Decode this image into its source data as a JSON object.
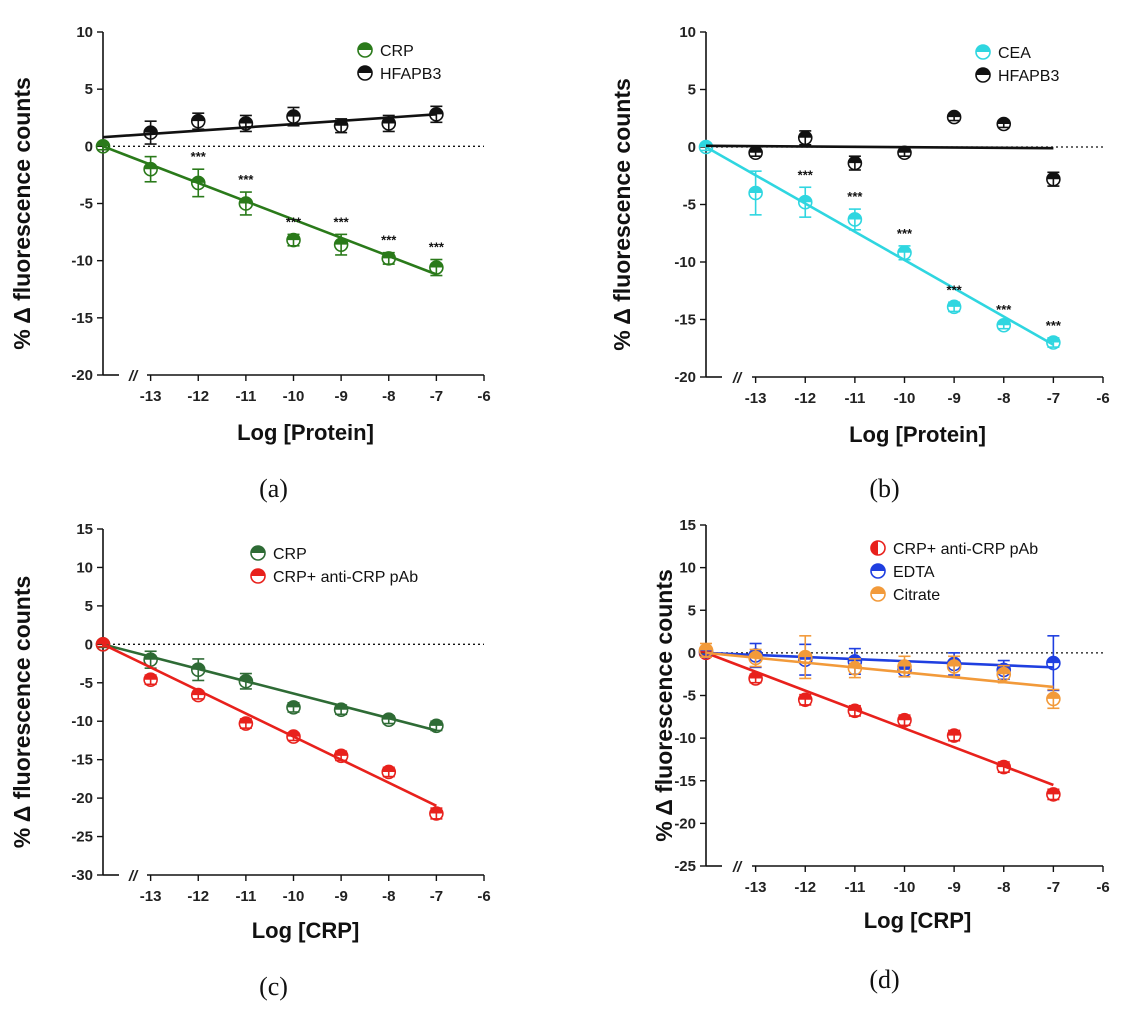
{
  "figure": {
    "panels": [
      "(a)",
      "(b)",
      "(c)",
      "(d)"
    ]
  },
  "chart_data": [
    {
      "type": "scatter",
      "panel_label": "(a)",
      "xlabel": "Log [Protein]",
      "ylabel": "% Δ fluorescence counts",
      "xlim": [
        -14,
        -6
      ],
      "ylim": [
        -20,
        10
      ],
      "xticks": [
        "-13",
        "-12",
        "-11",
        "-10",
        "-9",
        "-8",
        "-7",
        "-6"
      ],
      "yticks": [
        "10",
        "5",
        "0",
        "-5",
        "-10",
        "-15",
        "-20"
      ],
      "axis_break": "//",
      "legend_position": "top-right",
      "series": [
        {
          "name": "CRP",
          "color": "#2a7a1a",
          "x": [
            -14,
            -13,
            -12,
            -11,
            -10,
            -9,
            -8,
            -7
          ],
          "y": [
            0,
            -2,
            -3.2,
            -5,
            -8.2,
            -8.6,
            -9.8,
            -10.6
          ],
          "err": [
            0.3,
            1.1,
            1.2,
            1.0,
            0.5,
            0.9,
            0.5,
            0.7
          ],
          "fit": {
            "x": [
              -14,
              -7
            ],
            "y": [
              0,
              -11.2
            ]
          },
          "significance": [
            "",
            "",
            "***",
            "***",
            "***",
            "***",
            "***",
            "***"
          ]
        },
        {
          "name": "HFAPB3",
          "color": "#111111",
          "x": [
            -13,
            -12,
            -11,
            -10,
            -9,
            -8,
            -7
          ],
          "y": [
            1.2,
            2.2,
            2.0,
            2.6,
            1.8,
            2.0,
            2.8
          ],
          "err": [
            1.0,
            0.7,
            0.7,
            0.8,
            0.6,
            0.7,
            0.7
          ],
          "fit": {
            "x": [
              -14,
              -7
            ],
            "y": [
              0.8,
              2.8
            ]
          },
          "significance": []
        }
      ]
    },
    {
      "type": "scatter",
      "panel_label": "(b)",
      "xlabel": "Log [Protein]",
      "ylabel": "% Δ fluorescence counts",
      "xlim": [
        -14,
        -6
      ],
      "ylim": [
        -20,
        10
      ],
      "xticks": [
        "-13",
        "-12",
        "-11",
        "-10",
        "-9",
        "-8",
        "-7",
        "-6"
      ],
      "yticks": [
        "10",
        "5",
        "0",
        "-5",
        "-10",
        "-15",
        "-20"
      ],
      "axis_break": "//",
      "legend_position": "top-right",
      "series": [
        {
          "name": "CEA",
          "color": "#2fd6e0",
          "x": [
            -14,
            -13,
            -12,
            -11,
            -10,
            -9,
            -8,
            -7
          ],
          "y": [
            0,
            -4,
            -4.8,
            -6.3,
            -9.2,
            -13.9,
            -15.5,
            -17.0
          ],
          "err": [
            0.3,
            1.9,
            1.3,
            0.9,
            0.6,
            0.4,
            0.3,
            0.4
          ],
          "fit": {
            "x": [
              -14,
              -7
            ],
            "y": [
              0,
              -17.2
            ]
          },
          "significance": [
            "",
            "",
            "***",
            "***",
            "***",
            "***",
            "***",
            "***"
          ]
        },
        {
          "name": "HFAPB3",
          "color": "#111111",
          "x": [
            -13,
            -12,
            -11,
            -10,
            -9,
            -8,
            -7
          ],
          "y": [
            -0.5,
            0.8,
            -1.4,
            -0.5,
            2.6,
            2.0,
            -2.8
          ],
          "err": [
            0.3,
            0.6,
            0.6,
            0.3,
            0.3,
            0.3,
            0.6
          ],
          "fit": {
            "x": [
              -14,
              -7
            ],
            "y": [
              0.1,
              -0.1
            ]
          },
          "significance": []
        }
      ]
    },
    {
      "type": "scatter",
      "panel_label": "(c)",
      "xlabel": "Log [CRP]",
      "ylabel": "% Δ fluorescence counts",
      "xlim": [
        -14,
        -6
      ],
      "ylim": [
        -30,
        15
      ],
      "xticks": [
        "-13",
        "-12",
        "-11",
        "-10",
        "-9",
        "-8",
        "-7",
        "-6"
      ],
      "yticks": [
        "15",
        "10",
        "5",
        "0",
        "-5",
        "-10",
        "-15",
        "-20",
        "-25",
        "-30"
      ],
      "axis_break": "//",
      "legend_position": "top-right",
      "series": [
        {
          "name": "CRP",
          "color": "#2e6b35",
          "x": [
            -14,
            -13,
            -12,
            -11,
            -10,
            -9,
            -8,
            -7
          ],
          "y": [
            0,
            -2,
            -3.3,
            -4.8,
            -8.2,
            -8.5,
            -9.8,
            -10.6
          ],
          "err": [
            0.4,
            1.1,
            1.4,
            1.0,
            0.6,
            0.6,
            0.5,
            0.6
          ],
          "fit": {
            "x": [
              -14,
              -7
            ],
            "y": [
              0,
              -11.2
            ]
          },
          "significance": []
        },
        {
          "name": "CRP+ anti-CRP pAb",
          "color": "#e8211c",
          "x": [
            -14,
            -13,
            -12,
            -11,
            -10,
            -9,
            -8,
            -7
          ],
          "y": [
            0,
            -4.6,
            -6.6,
            -10.3,
            -12.0,
            -14.5,
            -16.6,
            -22.0
          ],
          "err": [
            0.3,
            0.6,
            0.5,
            0.6,
            0.5,
            0.6,
            0.6,
            0.7
          ],
          "fit": {
            "x": [
              -14,
              -7
            ],
            "y": [
              0,
              -21.0
            ]
          },
          "significance": []
        }
      ]
    },
    {
      "type": "scatter",
      "panel_label": "(d)",
      "xlabel": "Log [CRP]",
      "ylabel": "% Δ fluorescence counts",
      "xlim": [
        -14,
        -6
      ],
      "ylim": [
        -25,
        15
      ],
      "xticks": [
        "-13",
        "-12",
        "-11",
        "-10",
        "-9",
        "-8",
        "-7",
        "-6"
      ],
      "yticks": [
        "15",
        "10",
        "5",
        "0",
        "-5",
        "-10",
        "-15",
        "-20",
        "-25"
      ],
      "axis_break": "//",
      "legend_position": "top-right",
      "series": [
        {
          "name": "CRP+ anti-CRP pAb",
          "color": "#e8211c",
          "x": [
            -14,
            -13,
            -12,
            -11,
            -10,
            -9,
            -8,
            -7
          ],
          "y": [
            0,
            -3.0,
            -5.5,
            -6.8,
            -7.9,
            -9.7,
            -13.4,
            -16.6
          ],
          "err": [
            0.3,
            0.5,
            0.6,
            0.6,
            0.6,
            0.6,
            0.6,
            0.6
          ],
          "fit": {
            "x": [
              -14,
              -7
            ],
            "y": [
              0,
              -15.5
            ]
          },
          "significance": []
        },
        {
          "name": "EDTA",
          "color": "#1f3fe0",
          "x": [
            -14,
            -13,
            -12,
            -11,
            -10,
            -9,
            -8,
            -7
          ],
          "y": [
            0.2,
            -0.3,
            -0.8,
            -1.0,
            -2.0,
            -1.3,
            -2.0,
            -1.2
          ],
          "err": [
            0.4,
            1.4,
            1.8,
            1.5,
            0.8,
            1.3,
            1.1,
            3.2
          ],
          "fit": {
            "x": [
              -14,
              -7
            ],
            "y": [
              0,
              -1.7
            ]
          },
          "significance": []
        },
        {
          "name": "Citrate",
          "color": "#f29a3a",
          "x": [
            -14,
            -13,
            -12,
            -11,
            -10,
            -9,
            -8,
            -7
          ],
          "y": [
            0.3,
            -0.6,
            -0.5,
            -1.8,
            -1.6,
            -1.6,
            -2.5,
            -5.4
          ],
          "err": [
            0.8,
            1.0,
            2.5,
            1.1,
            1.2,
            1.2,
            1.0,
            1.1
          ],
          "fit": {
            "x": [
              -14,
              -7
            ],
            "y": [
              0,
              -4.0
            ]
          },
          "significance": []
        }
      ]
    }
  ]
}
